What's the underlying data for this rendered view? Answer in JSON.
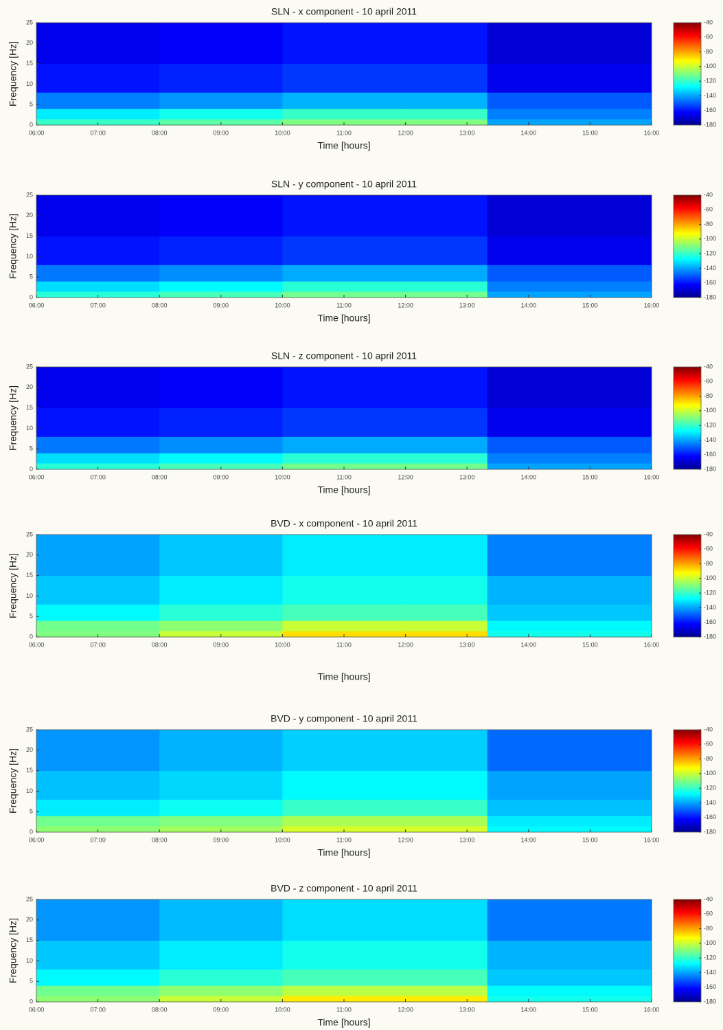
{
  "chart_data": [
    {
      "type": "heatmap",
      "title": "SLN - x component - 10 april 2011",
      "xlabel": "Time [hours]",
      "ylabel": "Frequency [Hz]",
      "x_bins": [
        6,
        8,
        10,
        12,
        13.33,
        16
      ],
      "y_bins": [
        0,
        1.5,
        4,
        8,
        15,
        25
      ],
      "values": [
        [
          -120,
          -115,
          -110,
          -110,
          -140
        ],
        [
          -130,
          -125,
          -120,
          -120,
          -145
        ],
        [
          -145,
          -142,
          -138,
          -138,
          -150
        ],
        [
          -160,
          -158,
          -155,
          -155,
          -165
        ],
        [
          -165,
          -163,
          -160,
          -160,
          -168
        ]
      ],
      "xlim": [
        6,
        16
      ],
      "ylim": [
        0,
        25
      ],
      "clim": [
        -180,
        -40
      ],
      "xticks": [
        {
          "value": 6,
          "label": "06:00"
        },
        {
          "value": 7,
          "label": "07:00"
        },
        {
          "value": 8,
          "label": "08:00"
        },
        {
          "value": 9,
          "label": "09:00"
        },
        {
          "value": 10,
          "label": "10:00"
        },
        {
          "value": 11,
          "label": "11:00"
        },
        {
          "value": 12,
          "label": "12:00"
        },
        {
          "value": 13,
          "label": "13:00"
        },
        {
          "value": 14,
          "label": "14:00"
        },
        {
          "value": 15,
          "label": "15:00"
        },
        {
          "value": 16,
          "label": "16:00"
        }
      ],
      "yticks": [
        0,
        5,
        10,
        15,
        20,
        25
      ],
      "cticks": [
        -40,
        -60,
        -80,
        -100,
        -120,
        -140,
        -160,
        -180
      ],
      "colormap": "jet"
    },
    {
      "type": "heatmap",
      "title": "SLN - y component - 10 april 2011",
      "xlabel": "Time [hours]",
      "ylabel": "Frequency [Hz]",
      "x_bins": [
        6,
        8,
        10,
        12,
        13.33,
        16
      ],
      "y_bins": [
        0,
        1.5,
        4,
        8,
        15,
        25
      ],
      "values": [
        [
          -122,
          -118,
          -112,
          -112,
          -140
        ],
        [
          -132,
          -128,
          -122,
          -122,
          -145
        ],
        [
          -146,
          -143,
          -139,
          -139,
          -150
        ],
        [
          -160,
          -158,
          -155,
          -155,
          -165
        ],
        [
          -165,
          -163,
          -160,
          -160,
          -168
        ]
      ],
      "xlim": [
        6,
        16
      ],
      "ylim": [
        0,
        25
      ],
      "clim": [
        -180,
        -40
      ],
      "xticks": [
        {
          "value": 6,
          "label": "06:00"
        },
        {
          "value": 7,
          "label": "07:00"
        },
        {
          "value": 8,
          "label": "08:00"
        },
        {
          "value": 9,
          "label": "09:00"
        },
        {
          "value": 10,
          "label": "10:00"
        },
        {
          "value": 11,
          "label": "11:00"
        },
        {
          "value": 12,
          "label": "12:00"
        },
        {
          "value": 13,
          "label": "13:00"
        },
        {
          "value": 14,
          "label": "14:00"
        },
        {
          "value": 15,
          "label": "15:00"
        },
        {
          "value": 16,
          "label": "16:00"
        }
      ],
      "yticks": [
        0,
        5,
        10,
        15,
        20,
        25
      ],
      "cticks": [
        -40,
        -60,
        -80,
        -100,
        -120,
        -140,
        -160,
        -180
      ],
      "colormap": "jet"
    },
    {
      "type": "heatmap",
      "title": "SLN - z component - 10 april 2011",
      "xlabel": "Time [hours]",
      "ylabel": "Frequency [Hz]",
      "x_bins": [
        6,
        8,
        10,
        12,
        13.33,
        16
      ],
      "y_bins": [
        0,
        1.5,
        4,
        8,
        15,
        25
      ],
      "values": [
        [
          -122,
          -118,
          -112,
          -112,
          -140
        ],
        [
          -132,
          -128,
          -122,
          -122,
          -145
        ],
        [
          -146,
          -143,
          -139,
          -139,
          -150
        ],
        [
          -160,
          -158,
          -155,
          -155,
          -165
        ],
        [
          -165,
          -163,
          -160,
          -160,
          -168
        ]
      ],
      "xlim": [
        6,
        16
      ],
      "ylim": [
        0,
        25
      ],
      "clim": [
        -180,
        -40
      ],
      "xticks": [
        {
          "value": 6,
          "label": "06:00"
        },
        {
          "value": 7,
          "label": "07:00"
        },
        {
          "value": 8,
          "label": "08:00"
        },
        {
          "value": 9,
          "label": "09:00"
        },
        {
          "value": 10,
          "label": "10:00"
        },
        {
          "value": 11,
          "label": "11:00"
        },
        {
          "value": 12,
          "label": "12:00"
        },
        {
          "value": 13,
          "label": "13:00"
        },
        {
          "value": 14,
          "label": "14:00"
        },
        {
          "value": 15,
          "label": "15:00"
        },
        {
          "value": 16,
          "label": "16:00"
        }
      ],
      "yticks": [
        0,
        5,
        10,
        15,
        20,
        25
      ],
      "cticks": [
        -40,
        -60,
        -80,
        -100,
        -120,
        -140,
        -160,
        -180
      ],
      "colormap": "jet"
    },
    {
      "type": "heatmap",
      "title": "BVD - x component - 10 april 2011",
      "xlabel": "Time [hours]",
      "ylabel": "Frequency [Hz]",
      "x_bins": [
        6,
        8,
        10,
        12,
        13.33,
        16
      ],
      "y_bins": [
        0,
        1.5,
        4,
        8,
        15,
        25
      ],
      "values": [
        [
          -110,
          -100,
          -88,
          -88,
          -125
        ],
        [
          -112,
          -108,
          -100,
          -100,
          -128
        ],
        [
          -128,
          -122,
          -118,
          -118,
          -135
        ],
        [
          -135,
          -130,
          -125,
          -125,
          -138
        ],
        [
          -140,
          -135,
          -130,
          -130,
          -145
        ]
      ],
      "xlim": [
        6,
        16
      ],
      "ylim": [
        0,
        25
      ],
      "clim": [
        -180,
        -40
      ],
      "xticks": [
        {
          "value": 6,
          "label": "06:00"
        },
        {
          "value": 7,
          "label": "07:00"
        },
        {
          "value": 8,
          "label": "08:00"
        },
        {
          "value": 9,
          "label": "09:00"
        },
        {
          "value": 10,
          "label": "10:00"
        },
        {
          "value": 11,
          "label": "11:00"
        },
        {
          "value": 12,
          "label": "12:00"
        },
        {
          "value": 13,
          "label": "13:00"
        },
        {
          "value": 14,
          "label": "14:00"
        },
        {
          "value": 15,
          "label": "15:00"
        },
        {
          "value": 16,
          "label": "16:00"
        }
      ],
      "yticks": [
        0,
        5,
        10,
        15,
        20,
        25
      ],
      "cticks": [
        -40,
        -60,
        -80,
        -100,
        -120,
        -140,
        -160,
        -180
      ],
      "colormap": "jet"
    },
    {
      "type": "heatmap",
      "title": "BVD - y component - 10 april 2011",
      "xlabel": "Time [hours]",
      "ylabel": "Frequency [Hz]",
      "x_bins": [
        6,
        8,
        10,
        12,
        13.33,
        16
      ],
      "y_bins": [
        0,
        1.5,
        4,
        8,
        15,
        25
      ],
      "values": [
        [
          -108,
          -105,
          -98,
          -98,
          -128
        ],
        [
          -112,
          -110,
          -104,
          -104,
          -130
        ],
        [
          -130,
          -126,
          -120,
          -120,
          -136
        ],
        [
          -136,
          -133,
          -128,
          -128,
          -140
        ],
        [
          -142,
          -138,
          -134,
          -134,
          -148
        ]
      ],
      "xlim": [
        6,
        16
      ],
      "ylim": [
        0,
        25
      ],
      "clim": [
        -180,
        -40
      ],
      "xticks": [
        {
          "value": 6,
          "label": "06:00"
        },
        {
          "value": 7,
          "label": "07:00"
        },
        {
          "value": 8,
          "label": "08:00"
        },
        {
          "value": 9,
          "label": "09:00"
        },
        {
          "value": 10,
          "label": "10:00"
        },
        {
          "value": 11,
          "label": "11:00"
        },
        {
          "value": 12,
          "label": "12:00"
        },
        {
          "value": 13,
          "label": "13:00"
        },
        {
          "value": 14,
          "label": "14:00"
        },
        {
          "value": 15,
          "label": "15:00"
        },
        {
          "value": 16,
          "label": "16:00"
        }
      ],
      "yticks": [
        0,
        5,
        10,
        15,
        20,
        25
      ],
      "cticks": [
        -40,
        -60,
        -80,
        -100,
        -120,
        -140,
        -160,
        -180
      ],
      "colormap": "jet"
    },
    {
      "type": "heatmap",
      "title": "BVD - z component - 10 april 2011",
      "xlabel": "Time [hours]",
      "ylabel": "Frequency [Hz]",
      "x_bins": [
        6,
        8,
        10,
        12,
        13.33,
        16
      ],
      "y_bins": [
        0,
        1.5,
        4,
        8,
        15,
        25
      ],
      "values": [
        [
          -108,
          -100,
          -90,
          -90,
          -125
        ],
        [
          -112,
          -108,
          -102,
          -102,
          -128
        ],
        [
          -128,
          -122,
          -118,
          -118,
          -135
        ],
        [
          -135,
          -130,
          -125,
          -125,
          -138
        ],
        [
          -142,
          -137,
          -132,
          -132,
          -146
        ]
      ],
      "xlim": [
        6,
        16
      ],
      "ylim": [
        0,
        25
      ],
      "clim": [
        -180,
        -40
      ],
      "xticks": [
        {
          "value": 6,
          "label": "06:00"
        },
        {
          "value": 7,
          "label": "07:00"
        },
        {
          "value": 8,
          "label": "08:00"
        },
        {
          "value": 9,
          "label": "09:00"
        },
        {
          "value": 10,
          "label": "10:00"
        },
        {
          "value": 11,
          "label": "11:00"
        },
        {
          "value": 12,
          "label": "12:00"
        },
        {
          "value": 13,
          "label": "13:00"
        },
        {
          "value": 14,
          "label": "14:00"
        },
        {
          "value": 15,
          "label": "15:00"
        },
        {
          "value": 16,
          "label": "16:00"
        }
      ],
      "yticks": [
        0,
        5,
        10,
        15,
        20,
        25
      ],
      "cticks": [
        -40,
        -60,
        -80,
        -100,
        -120,
        -140,
        -160,
        -180
      ],
      "colormap": "jet"
    }
  ]
}
